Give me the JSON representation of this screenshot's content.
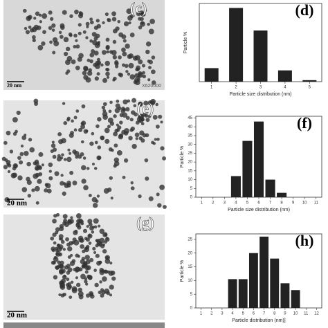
{
  "panels": [
    {
      "label": "(c)",
      "scale": "20 nm",
      "magnification": "X620000"
    },
    {
      "label": "(e)",
      "scale": "20 nm"
    },
    {
      "label": "(g)",
      "scale": "20 nm"
    }
  ],
  "chart_data": [
    {
      "type": "bar",
      "panel_label": "(d)",
      "xlabel": "Particle size distribution (nm)",
      "ylabel": "Particle %",
      "categories": [
        "1",
        "2",
        "3",
        "4",
        "5"
      ],
      "values": [
        9,
        49,
        34,
        7.5,
        1
      ],
      "color": "#222222",
      "ylim": [
        0,
        52
      ]
    },
    {
      "type": "bar",
      "panel_label": "(f)",
      "xlabel": "Particle size distribution (nm)",
      "ylabel": "Particle %",
      "categories": [
        "1",
        "2",
        "3",
        "4",
        "5",
        "6",
        "7",
        "8",
        "9",
        "10",
        "11"
      ],
      "values": [
        null,
        null,
        null,
        12,
        32,
        43,
        10,
        2.5,
        null,
        null,
        null
      ],
      "color": "#222222",
      "ylim": [
        0,
        46
      ],
      "yticks": [
        0,
        5,
        10,
        15,
        20,
        25,
        30,
        35,
        40,
        45
      ]
    },
    {
      "type": "bar",
      "panel_label": "(h)",
      "xlabel": "Particle distribution (nm)]",
      "ylabel": "Particle %",
      "categories": [
        "1",
        "2",
        "3",
        "4",
        "5",
        "6",
        "7",
        "8",
        "9",
        "10",
        "11",
        "12"
      ],
      "values": [
        null,
        null,
        null,
        10.5,
        10.5,
        20,
        26,
        18,
        9,
        6.5,
        null,
        null
      ],
      "color": "#222222",
      "ylim": [
        0,
        27
      ],
      "yticks": [
        0,
        5,
        10,
        15,
        20,
        25
      ]
    }
  ]
}
